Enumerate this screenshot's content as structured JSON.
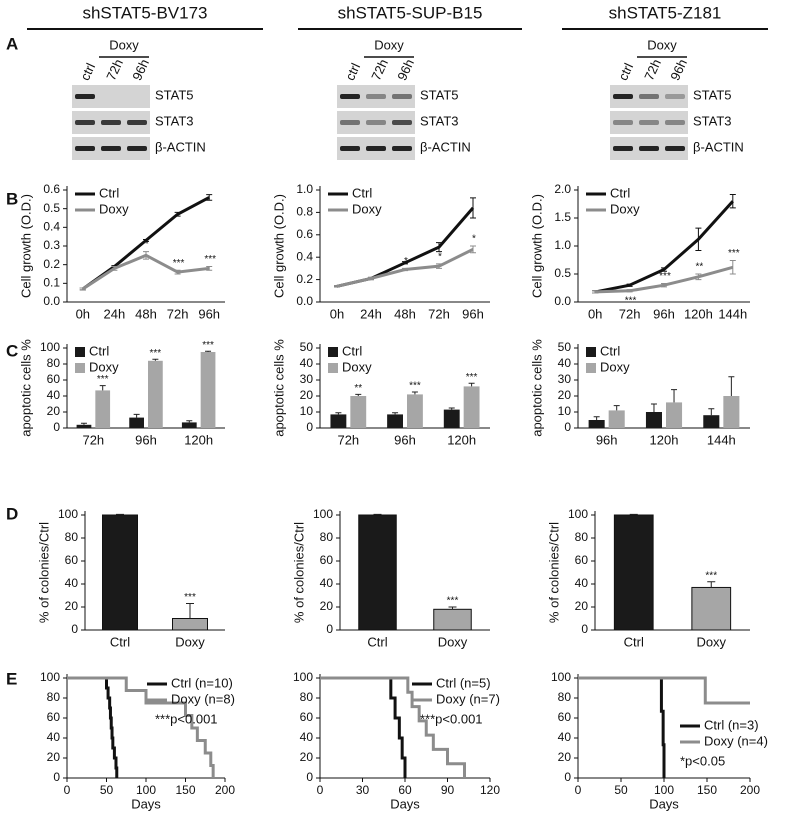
{
  "panels": [
    "A",
    "B",
    "C",
    "D",
    "E"
  ],
  "columns": [
    {
      "title": "shSTAT5-BV173",
      "group": "Doxy",
      "lanes": [
        "ctrl",
        "72h",
        "96h"
      ],
      "proteins": [
        "STAT5",
        "STAT3",
        "β-ACTIN"
      ]
    },
    {
      "title": "shSTAT5-SUP-B15",
      "group": "Doxy",
      "lanes": [
        "ctrl",
        "72h",
        "96h"
      ],
      "proteins": [
        "STAT5",
        "STAT3",
        "β-ACTIN"
      ]
    },
    {
      "title": "shSTAT5-Z181",
      "group": "Doxy",
      "lanes": [
        "ctrl",
        "72h",
        "96h"
      ],
      "proteins": [
        "STAT5",
        "STAT3",
        "β-ACTIN"
      ]
    }
  ],
  "chart_data": [
    {
      "type": "line",
      "ylabel": "Cell growth (O.D.)",
      "categories": [
        "0h",
        "24h",
        "48h",
        "72h",
        "96h"
      ],
      "ylim": [
        0,
        0.6
      ],
      "yticks": [
        {
          "value": 0,
          "label": "0.0"
        },
        0.1,
        0.2,
        0.3,
        0.4,
        0.5,
        0.6
      ],
      "legend": "upper left",
      "series": [
        {
          "name": "Ctrl",
          "color": "#111111",
          "values": [
            0.07,
            0.19,
            0.33,
            0.47,
            0.56
          ],
          "errors": [
            0.005,
            0.005,
            0.005,
            0.01,
            0.015
          ]
        },
        {
          "name": "Doxy",
          "color": "#8c8c8c",
          "values": [
            0.07,
            0.18,
            0.25,
            0.16,
            0.18
          ],
          "errors": [
            0.005,
            0.01,
            0.02,
            0.01,
            0.01
          ],
          "significance": [
            null,
            null,
            "*",
            "***",
            "***"
          ]
        }
      ]
    },
    {
      "type": "line",
      "ylabel": "Cell growth (O.D.)",
      "categories": [
        "0h",
        "24h",
        "48h",
        "72h",
        "96h"
      ],
      "ylim": [
        0,
        1
      ],
      "yticks": [
        {
          "value": 0,
          "label": "0.0"
        },
        0.2,
        0.4,
        0.6,
        0.8,
        {
          "value": 1,
          "label": "1.0"
        }
      ],
      "legend": "upper left",
      "series": [
        {
          "name": "Ctrl",
          "color": "#111111",
          "values": [
            0.14,
            0.21,
            0.35,
            0.49,
            0.84
          ],
          "errors": [
            0.005,
            0.01,
            0.01,
            0.04,
            0.09
          ]
        },
        {
          "name": "Doxy",
          "color": "#8c8c8c",
          "values": [
            0.14,
            0.21,
            0.29,
            0.32,
            0.47
          ],
          "errors": [
            0.005,
            0.01,
            0.01,
            0.02,
            0.03
          ],
          "significance": [
            null,
            null,
            "*",
            "*",
            "*"
          ]
        }
      ]
    },
    {
      "type": "line",
      "ylabel": "Cell growth (O.D.)",
      "categories": [
        "0h",
        "72h",
        "96h",
        "120h",
        "144h"
      ],
      "ylim": [
        0,
        2
      ],
      "yticks": [
        {
          "value": 0,
          "label": "0.0"
        },
        0.5,
        {
          "value": 1,
          "label": "1.0"
        },
        1.5,
        {
          "value": 2,
          "label": "2.0"
        }
      ],
      "legend": "upper left",
      "series": [
        {
          "name": "Ctrl",
          "color": "#111111",
          "values": [
            0.18,
            0.3,
            0.58,
            1.12,
            1.8
          ],
          "errors": [
            0.02,
            0.02,
            0.03,
            0.2,
            0.12
          ]
        },
        {
          "name": "Doxy",
          "color": "#8c8c8c",
          "values": [
            0.18,
            0.2,
            0.3,
            0.45,
            0.62
          ],
          "errors": [
            0.02,
            0.02,
            0.03,
            0.05,
            0.12
          ],
          "significance": [
            null,
            "***",
            "***",
            "**",
            "***"
          ]
        }
      ]
    },
    {
      "type": "bar",
      "ylabel": "apoptotic cells %",
      "categories": [
        "72h",
        "96h",
        "120h"
      ],
      "ylim": [
        0,
        100
      ],
      "yticks": [
        0,
        20,
        40,
        60,
        80,
        100
      ],
      "legend": "upper left",
      "series": [
        {
          "name": "Ctrl",
          "color": "#1a1a1a",
          "values": [
            4,
            13,
            7
          ],
          "errors": [
            2,
            4,
            2
          ]
        },
        {
          "name": "Doxy",
          "color": "#a6a6a6",
          "values": [
            47,
            84,
            95
          ],
          "errors": [
            6,
            2,
            1
          ],
          "significance": [
            "***",
            "***",
            "***"
          ]
        }
      ]
    },
    {
      "type": "bar",
      "ylabel": "apoptotic cells %",
      "categories": [
        "72h",
        "96h",
        "120h"
      ],
      "ylim": [
        0,
        50
      ],
      "yticks": [
        0,
        10,
        20,
        30,
        40,
        50
      ],
      "legend": "upper left",
      "series": [
        {
          "name": "Ctrl",
          "color": "#1a1a1a",
          "values": [
            8.5,
            8.5,
            11.5
          ],
          "errors": [
            1,
            1,
            1
          ]
        },
        {
          "name": "Doxy",
          "color": "#a6a6a6",
          "values": [
            20,
            21,
            26
          ],
          "errors": [
            1,
            1.5,
            2
          ],
          "significance": [
            "**",
            "***",
            "***"
          ]
        }
      ]
    },
    {
      "type": "bar",
      "ylabel": "apoptotic cells %",
      "categories": [
        "96h",
        "120h",
        "144h"
      ],
      "ylim": [
        0,
        50
      ],
      "yticks": [
        0,
        10,
        20,
        30,
        40,
        50
      ],
      "legend": "upper left",
      "series": [
        {
          "name": "Ctrl",
          "color": "#1a1a1a",
          "values": [
            5,
            10,
            8
          ],
          "errors": [
            2,
            5,
            4
          ]
        },
        {
          "name": "Doxy",
          "color": "#a6a6a6",
          "values": [
            11,
            16,
            20
          ],
          "errors": [
            3,
            8,
            12
          ]
        }
      ]
    },
    {
      "type": "bar",
      "ylabel": "% of colonies/Ctrl",
      "categories": [
        "Ctrl",
        "Doxy"
      ],
      "ylim": [
        0,
        100
      ],
      "yticks": [
        0,
        20,
        40,
        60,
        80,
        100
      ],
      "values": [
        100,
        10
      ],
      "colors": [
        "#1a1a1a",
        "#a6a6a6"
      ],
      "errors": [
        0.5,
        13
      ],
      "significance": [
        null,
        "***"
      ]
    },
    {
      "type": "bar",
      "ylabel": "% of colonies/Ctrl",
      "categories": [
        "Ctrl",
        "Doxy"
      ],
      "ylim": [
        0,
        100
      ],
      "yticks": [
        0,
        20,
        40,
        60,
        80,
        100
      ],
      "values": [
        100,
        18
      ],
      "colors": [
        "#1a1a1a",
        "#a6a6a6"
      ],
      "errors": [
        0.5,
        2
      ],
      "significance": [
        null,
        "***"
      ]
    },
    {
      "type": "bar",
      "ylabel": "% of colonies/Ctrl",
      "categories": [
        "Ctrl",
        "Doxy"
      ],
      "ylim": [
        0,
        100
      ],
      "yticks": [
        0,
        20,
        40,
        60,
        80,
        100
      ],
      "values": [
        100,
        37
      ],
      "colors": [
        "#1a1a1a",
        "#a6a6a6"
      ],
      "errors": [
        0.5,
        5
      ],
      "significance": [
        null,
        "***"
      ]
    },
    {
      "type": "step",
      "xlabel": "Days",
      "xlim": [
        0,
        200
      ],
      "xticks": [
        0,
        50,
        100,
        150,
        200
      ],
      "ylim": [
        0,
        100
      ],
      "yticks": [
        0,
        20,
        40,
        60,
        80,
        100
      ],
      "legend": "upper right",
      "annotation": "***p<0.001",
      "series": [
        {
          "name": "Ctrl (n=10)",
          "color": "#111111",
          "x": [
            0,
            50,
            52,
            54,
            55,
            56,
            57,
            58,
            60,
            62,
            63
          ],
          "values": [
            100,
            90,
            80,
            70,
            60,
            50,
            40,
            30,
            20,
            10,
            0
          ]
        },
        {
          "name": "Doxy (n=8)",
          "color": "#8c8c8c",
          "x": [
            0,
            75,
            100,
            150,
            158,
            165,
            175,
            182,
            185
          ],
          "values": [
            100,
            87.5,
            75,
            62.5,
            50,
            37.5,
            25,
            12.5,
            0
          ]
        }
      ]
    },
    {
      "type": "step",
      "xlabel": "Days",
      "xlim": [
        0,
        120
      ],
      "xticks": [
        0,
        30,
        60,
        90,
        120
      ],
      "ylim": [
        0,
        100
      ],
      "yticks": [
        0,
        20,
        40,
        60,
        80,
        100
      ],
      "legend": "upper right",
      "annotation": "***p<0.001",
      "series": [
        {
          "name": "Ctrl (n=5)",
          "color": "#111111",
          "x": [
            0,
            50,
            53,
            56,
            58,
            60
          ],
          "values": [
            100,
            80,
            60,
            40,
            20,
            0
          ]
        },
        {
          "name": "Doxy (n=7)",
          "color": "#8c8c8c",
          "x": [
            0,
            62,
            65,
            70,
            75,
            80,
            90,
            102
          ],
          "values": [
            100,
            85.7,
            71.4,
            57.1,
            42.9,
            28.6,
            14.3,
            0
          ]
        }
      ]
    },
    {
      "type": "step",
      "xlabel": "Days",
      "xlim": [
        0,
        200
      ],
      "xticks": [
        0,
        50,
        100,
        150,
        200
      ],
      "ylim": [
        0,
        100
      ],
      "yticks": [
        0,
        20,
        40,
        60,
        80,
        100
      ],
      "legend": "center right",
      "annotation": "*p<0.05",
      "series": [
        {
          "name": "Ctrl (n=3)",
          "color": "#111111",
          "x": [
            0,
            97,
            99,
            100
          ],
          "values": [
            100,
            66.7,
            33.3,
            0
          ]
        },
        {
          "name": "Doxy (n=4)",
          "color": "#8c8c8c",
          "x": [
            0,
            148,
            200
          ],
          "values": [
            100,
            75,
            75
          ]
        }
      ]
    }
  ]
}
